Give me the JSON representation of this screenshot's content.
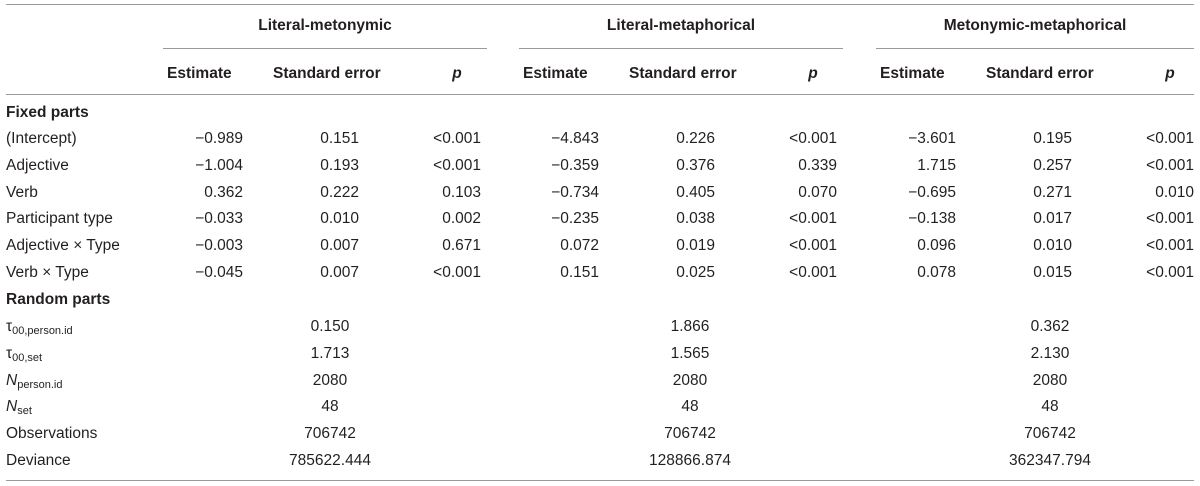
{
  "groups": [
    "Literal-metonymic",
    "Literal-metaphorical",
    "Metonymic-metaphorical"
  ],
  "column_headers": {
    "estimate": "Estimate",
    "standard_error": "Standard error",
    "p": "p"
  },
  "fixed_label": "Fixed parts",
  "fixed_rows": [
    {
      "label": "(Intercept)",
      "values": [
        "−0.989",
        "0.151",
        "<0.001",
        "−4.843",
        "0.226",
        "<0.001",
        "−3.601",
        "0.195",
        "<0.001"
      ]
    },
    {
      "label": "Adjective",
      "values": [
        "−1.004",
        "0.193",
        "<0.001",
        "−0.359",
        "0.376",
        "0.339",
        "1.715",
        "0.257",
        "<0.001"
      ]
    },
    {
      "label": "Verb",
      "values": [
        "0.362",
        "0.222",
        "0.103",
        "−0.734",
        "0.405",
        "0.070",
        "−0.695",
        "0.271",
        "0.010"
      ]
    },
    {
      "label": "Participant type",
      "values": [
        "−0.033",
        "0.010",
        "0.002",
        "−0.235",
        "0.038",
        "<0.001",
        "−0.138",
        "0.017",
        "<0.001"
      ]
    },
    {
      "label": "Adjective × Type",
      "values": [
        "−0.003",
        "0.007",
        "0.671",
        "0.072",
        "0.019",
        "<0.001",
        "0.096",
        "0.010",
        "<0.001"
      ]
    },
    {
      "label": "Verb × Type",
      "values": [
        "−0.045",
        "0.007",
        "<0.001",
        "0.151",
        "0.025",
        "<0.001",
        "0.078",
        "0.015",
        "<0.001"
      ]
    }
  ],
  "random_label": "Random parts",
  "random_rows": [
    {
      "sym": "τ",
      "sym_italic": false,
      "sub": "00,person.id",
      "values": [
        "0.150",
        "1.866",
        "0.362"
      ]
    },
    {
      "sym": "τ",
      "sym_italic": false,
      "sub": "00,set",
      "values": [
        "1.713",
        "1.565",
        "2.130"
      ]
    },
    {
      "sym": "N",
      "sym_italic": true,
      "sub": "person.id",
      "values": [
        "2080",
        "2080",
        "2080"
      ]
    },
    {
      "sym": "N",
      "sym_italic": true,
      "sub": "set",
      "values": [
        "48",
        "48",
        "48"
      ]
    },
    {
      "label": "Observations",
      "values": [
        "706742",
        "706742",
        "706742"
      ]
    },
    {
      "label": "Deviance",
      "values": [
        "785622.444",
        "128866.874",
        "362347.794"
      ]
    }
  ]
}
